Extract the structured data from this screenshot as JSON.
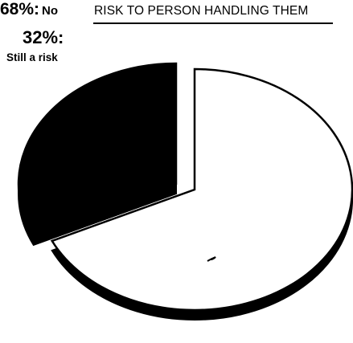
{
  "chart_data": {
    "type": "pie",
    "title": "RISK TO PERSON HANDLING THEM",
    "slices": [
      {
        "label": "Still a risk",
        "value": 32,
        "value_label": "32%:",
        "color": "#000000",
        "exploded": true
      },
      {
        "label": "No",
        "value": 68,
        "value_label": "68%:",
        "color": "#ffffff",
        "exploded": false
      }
    ],
    "style": "3d-pie, black and white"
  }
}
